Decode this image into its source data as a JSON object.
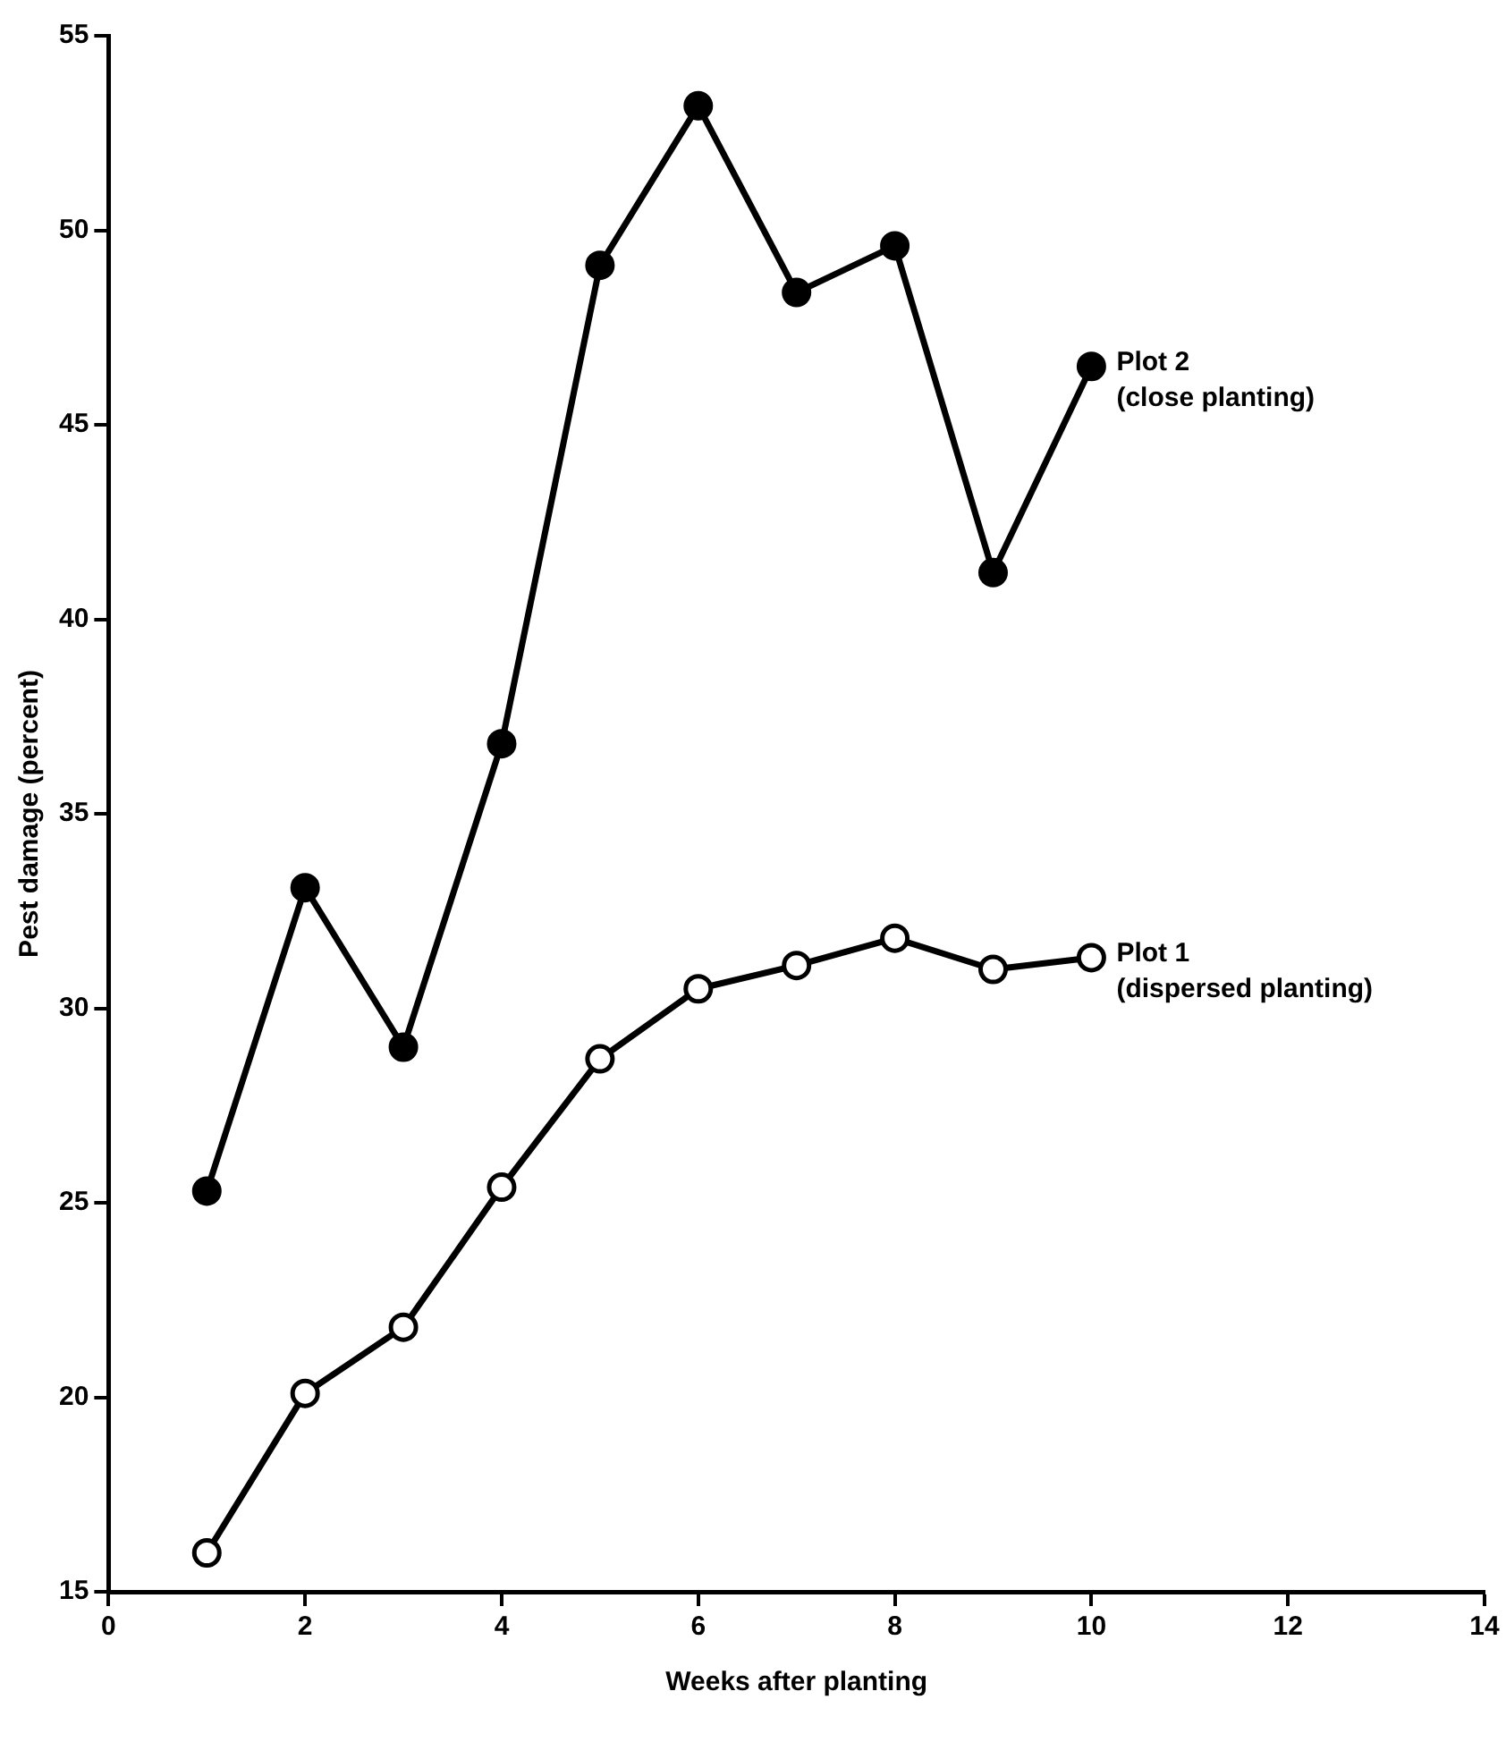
{
  "chart_data": {
    "type": "line",
    "xlabel": "Weeks after planting",
    "ylabel": "Pest damage (percent)",
    "x": [
      1,
      2,
      3,
      4,
      5,
      6,
      7,
      8,
      9,
      10
    ],
    "series": [
      {
        "name": "Plot 2\n(close planting)",
        "color": "#000000",
        "values": [
          25.3,
          33.1,
          29.0,
          36.8,
          49.1,
          53.2,
          48.4,
          49.6,
          41.2,
          46.5
        ]
      },
      {
        "name": "Plot 1\n(dispersed planting)",
        "color": "#000000",
        "values": [
          16.0,
          20.1,
          21.8,
          25.4,
          28.7,
          30.5,
          31.1,
          31.8,
          31.0,
          31.3
        ]
      }
    ],
    "xlim": [
      0,
      14
    ],
    "xticks": [
      0,
      2,
      4,
      6,
      8,
      10,
      12,
      14
    ],
    "ylim": [
      15,
      55
    ],
    "yticks": [
      15,
      20,
      25,
      30,
      35,
      40,
      45,
      50,
      55
    ],
    "grid": false,
    "legend": false,
    "marker": "circle",
    "line_style": "solid"
  }
}
